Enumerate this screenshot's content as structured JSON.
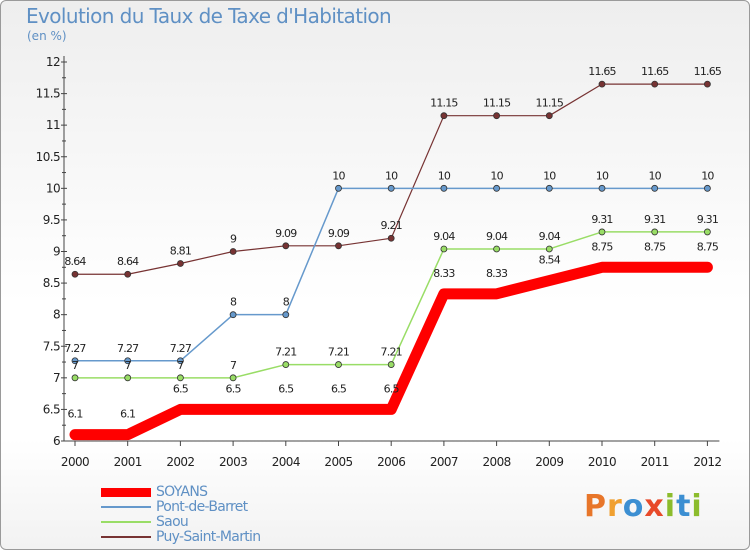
{
  "header": {
    "title": "Evolution du Taux de Taxe d'Habitation",
    "subtitle": "(en %)"
  },
  "logo": {
    "text": "Proxiti",
    "letters": [
      {
        "ch": "P",
        "color": "#e8762a"
      },
      {
        "ch": "r",
        "color": "#f0a030"
      },
      {
        "ch": "o",
        "color": "#3c8fd2"
      },
      {
        "ch": "x",
        "color": "#e84a2a"
      },
      {
        "ch": "i",
        "color": "#8cbc2c"
      },
      {
        "ch": "t",
        "color": "#3c8fd2"
      },
      {
        "ch": "i",
        "color": "#8cbc2c"
      }
    ]
  },
  "chart_data": {
    "type": "line",
    "x": [
      "2000",
      "2001",
      "2002",
      "2003",
      "2004",
      "2005",
      "2006",
      "2007",
      "2008",
      "2009",
      "2010",
      "2011",
      "2012"
    ],
    "ylim": [
      6,
      12
    ],
    "yticks": [
      "6",
      "6.5",
      "7",
      "7.5",
      "8",
      "8.5",
      "9",
      "9.5",
      "10",
      "10.5",
      "11",
      "11.5",
      "12"
    ],
    "grid": false,
    "legend_position": "bottom-left",
    "series": [
      {
        "name": "SOYANS",
        "color": "#ff0000",
        "values": [
          6.1,
          6.1,
          6.5,
          6.5,
          6.5,
          6.5,
          6.5,
          8.33,
          8.33,
          8.54,
          8.75,
          8.75,
          8.75
        ],
        "labels": [
          "6.1",
          "6.1",
          "6.5",
          "6.5",
          "6.5",
          "6.5",
          "6.5",
          "8.33",
          "8.33",
          "8.54",
          "8.75",
          "8.75",
          "8.75"
        ]
      },
      {
        "name": "Pont-de-Barret",
        "color": "#6699cc",
        "values": [
          7.27,
          7.27,
          7.27,
          8,
          8,
          10,
          10,
          10,
          10,
          10,
          10,
          10,
          10
        ],
        "labels": [
          "7.27",
          "7.27",
          "7.27",
          "8",
          "8",
          "10",
          "10",
          "10",
          "10",
          "10",
          "10",
          "10",
          "10"
        ]
      },
      {
        "name": "Saou",
        "color": "#99dd66",
        "values": [
          7,
          7,
          7,
          7,
          7.21,
          7.21,
          7.21,
          9.04,
          9.04,
          9.04,
          9.31,
          9.31,
          9.31
        ],
        "labels": [
          "7",
          "7",
          "7",
          "7",
          "7.21",
          "7.21",
          "7.21",
          "9.04",
          "9.04",
          "9.04",
          "9.31",
          "9.31",
          "9.31"
        ]
      },
      {
        "name": "Puy-Saint-Martin",
        "color": "#773333",
        "values": [
          8.64,
          8.64,
          8.81,
          9,
          9.09,
          9.09,
          9.21,
          11.15,
          11.15,
          11.15,
          11.65,
          11.65,
          11.65
        ],
        "labels": [
          "8.64",
          "8.64",
          "8.81",
          "9",
          "9.09",
          "9.09",
          "9.21",
          "11.15",
          "11.15",
          "11.15",
          "11.65",
          "11.65",
          "11.65"
        ]
      }
    ]
  }
}
